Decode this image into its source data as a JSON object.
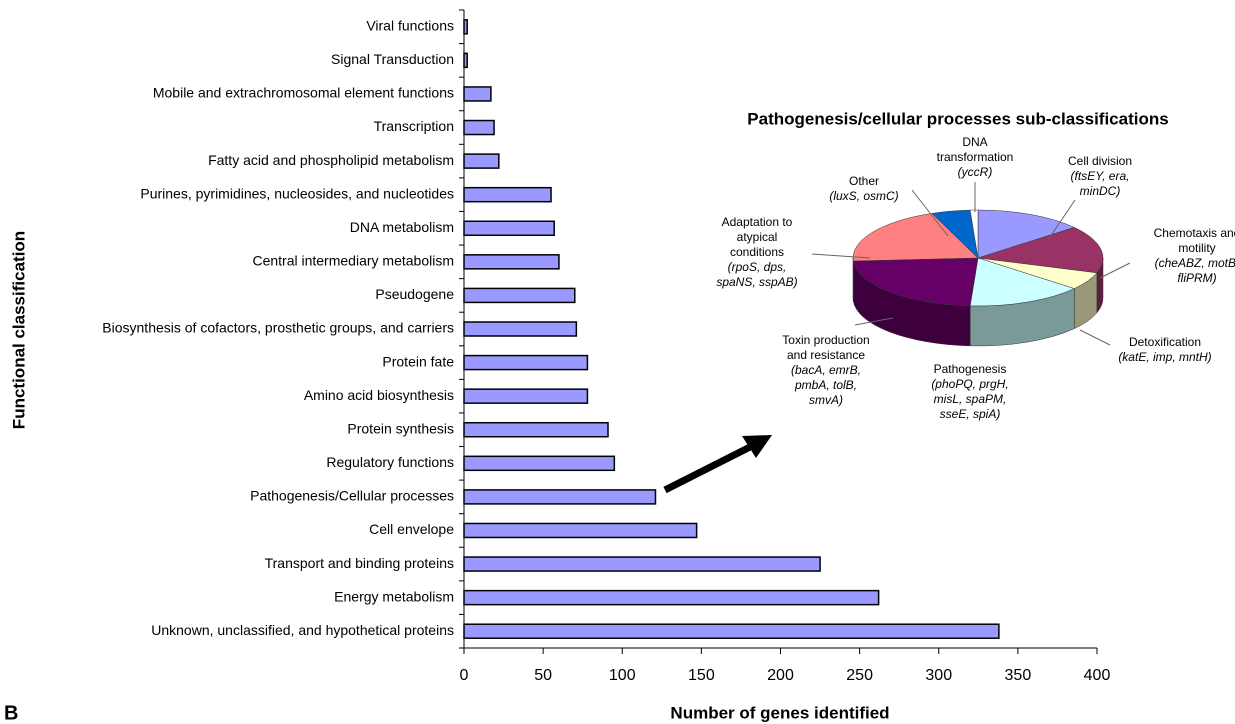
{
  "chart_data": [
    {
      "type": "barh",
      "categories": [
        "Viral functions",
        "Signal Transduction",
        "Mobile and extrachromosomal element functions",
        "Transcription",
        "Fatty acid and phospholipid metabolism",
        "Purines, pyrimidines, nucleosides, and nucleotides",
        "DNA metabolism",
        "Central intermediary metabolism",
        "Pseudogene",
        "Biosynthesis of cofactors, prosthetic groups, and carriers",
        "Protein fate",
        "Amino acid biosynthesis",
        "Protein synthesis",
        "Regulatory functions",
        "Pathogenesis/Cellular processes",
        "Cell envelope",
        "Transport and binding proteins",
        "Energy metabolism",
        "Unknown, unclassified, and hypothetical proteins"
      ],
      "values": [
        2,
        2,
        17,
        19,
        22,
        55,
        57,
        60,
        70,
        71,
        78,
        78,
        91,
        95,
        121,
        147,
        225,
        262,
        338
      ],
      "color": "#9999ff",
      "xlim": [
        0,
        400
      ],
      "xticks": [
        0,
        50,
        100,
        150,
        200,
        250,
        300,
        350,
        400
      ],
      "xlabel": "Number of genes identified",
      "ylabel": "Functional classification",
      "panel": "B"
    },
    {
      "type": "pie3d",
      "title": "Pathogenesis/cellular processes sub-classifications",
      "labels": [
        [
          "Cell division"
        ],
        [
          "Chemotaxis and",
          "motility"
        ],
        [
          "Detoxification"
        ],
        [
          "Pathogenesis"
        ],
        [
          "Toxin production",
          "and resistance"
        ],
        [
          "Adaptation to",
          "atypical",
          "conditions"
        ],
        [
          "Other"
        ],
        [
          "DNA",
          "transformation"
        ]
      ],
      "genes": [
        [
          "(ftsEY, era,",
          "minDC)"
        ],
        [
          "(cheABZ, motB,",
          "fliPRM)"
        ],
        [
          "(katE, imp, mntH)"
        ],
        [
          "(phoPQ, prgH,",
          "misL, spaPM,",
          "sseE, spiA)"
        ],
        [
          "(bacA, emrB,",
          "pmbA, tolB,",
          "smvA)"
        ],
        [
          "(rpoS, dps,",
          "spaNS, sspAB)"
        ],
        [
          "(luxS, osmC)"
        ],
        [
          "(yccR)"
        ]
      ],
      "values": [
        14,
        16,
        6,
        15,
        23,
        20,
        5,
        1
      ],
      "colors": [
        "#9999ff",
        "#993366",
        "#ffffcc",
        "#ccffff",
        "#660066",
        "#ff8080",
        "#0066cc",
        "#ffffff"
      ]
    }
  ]
}
